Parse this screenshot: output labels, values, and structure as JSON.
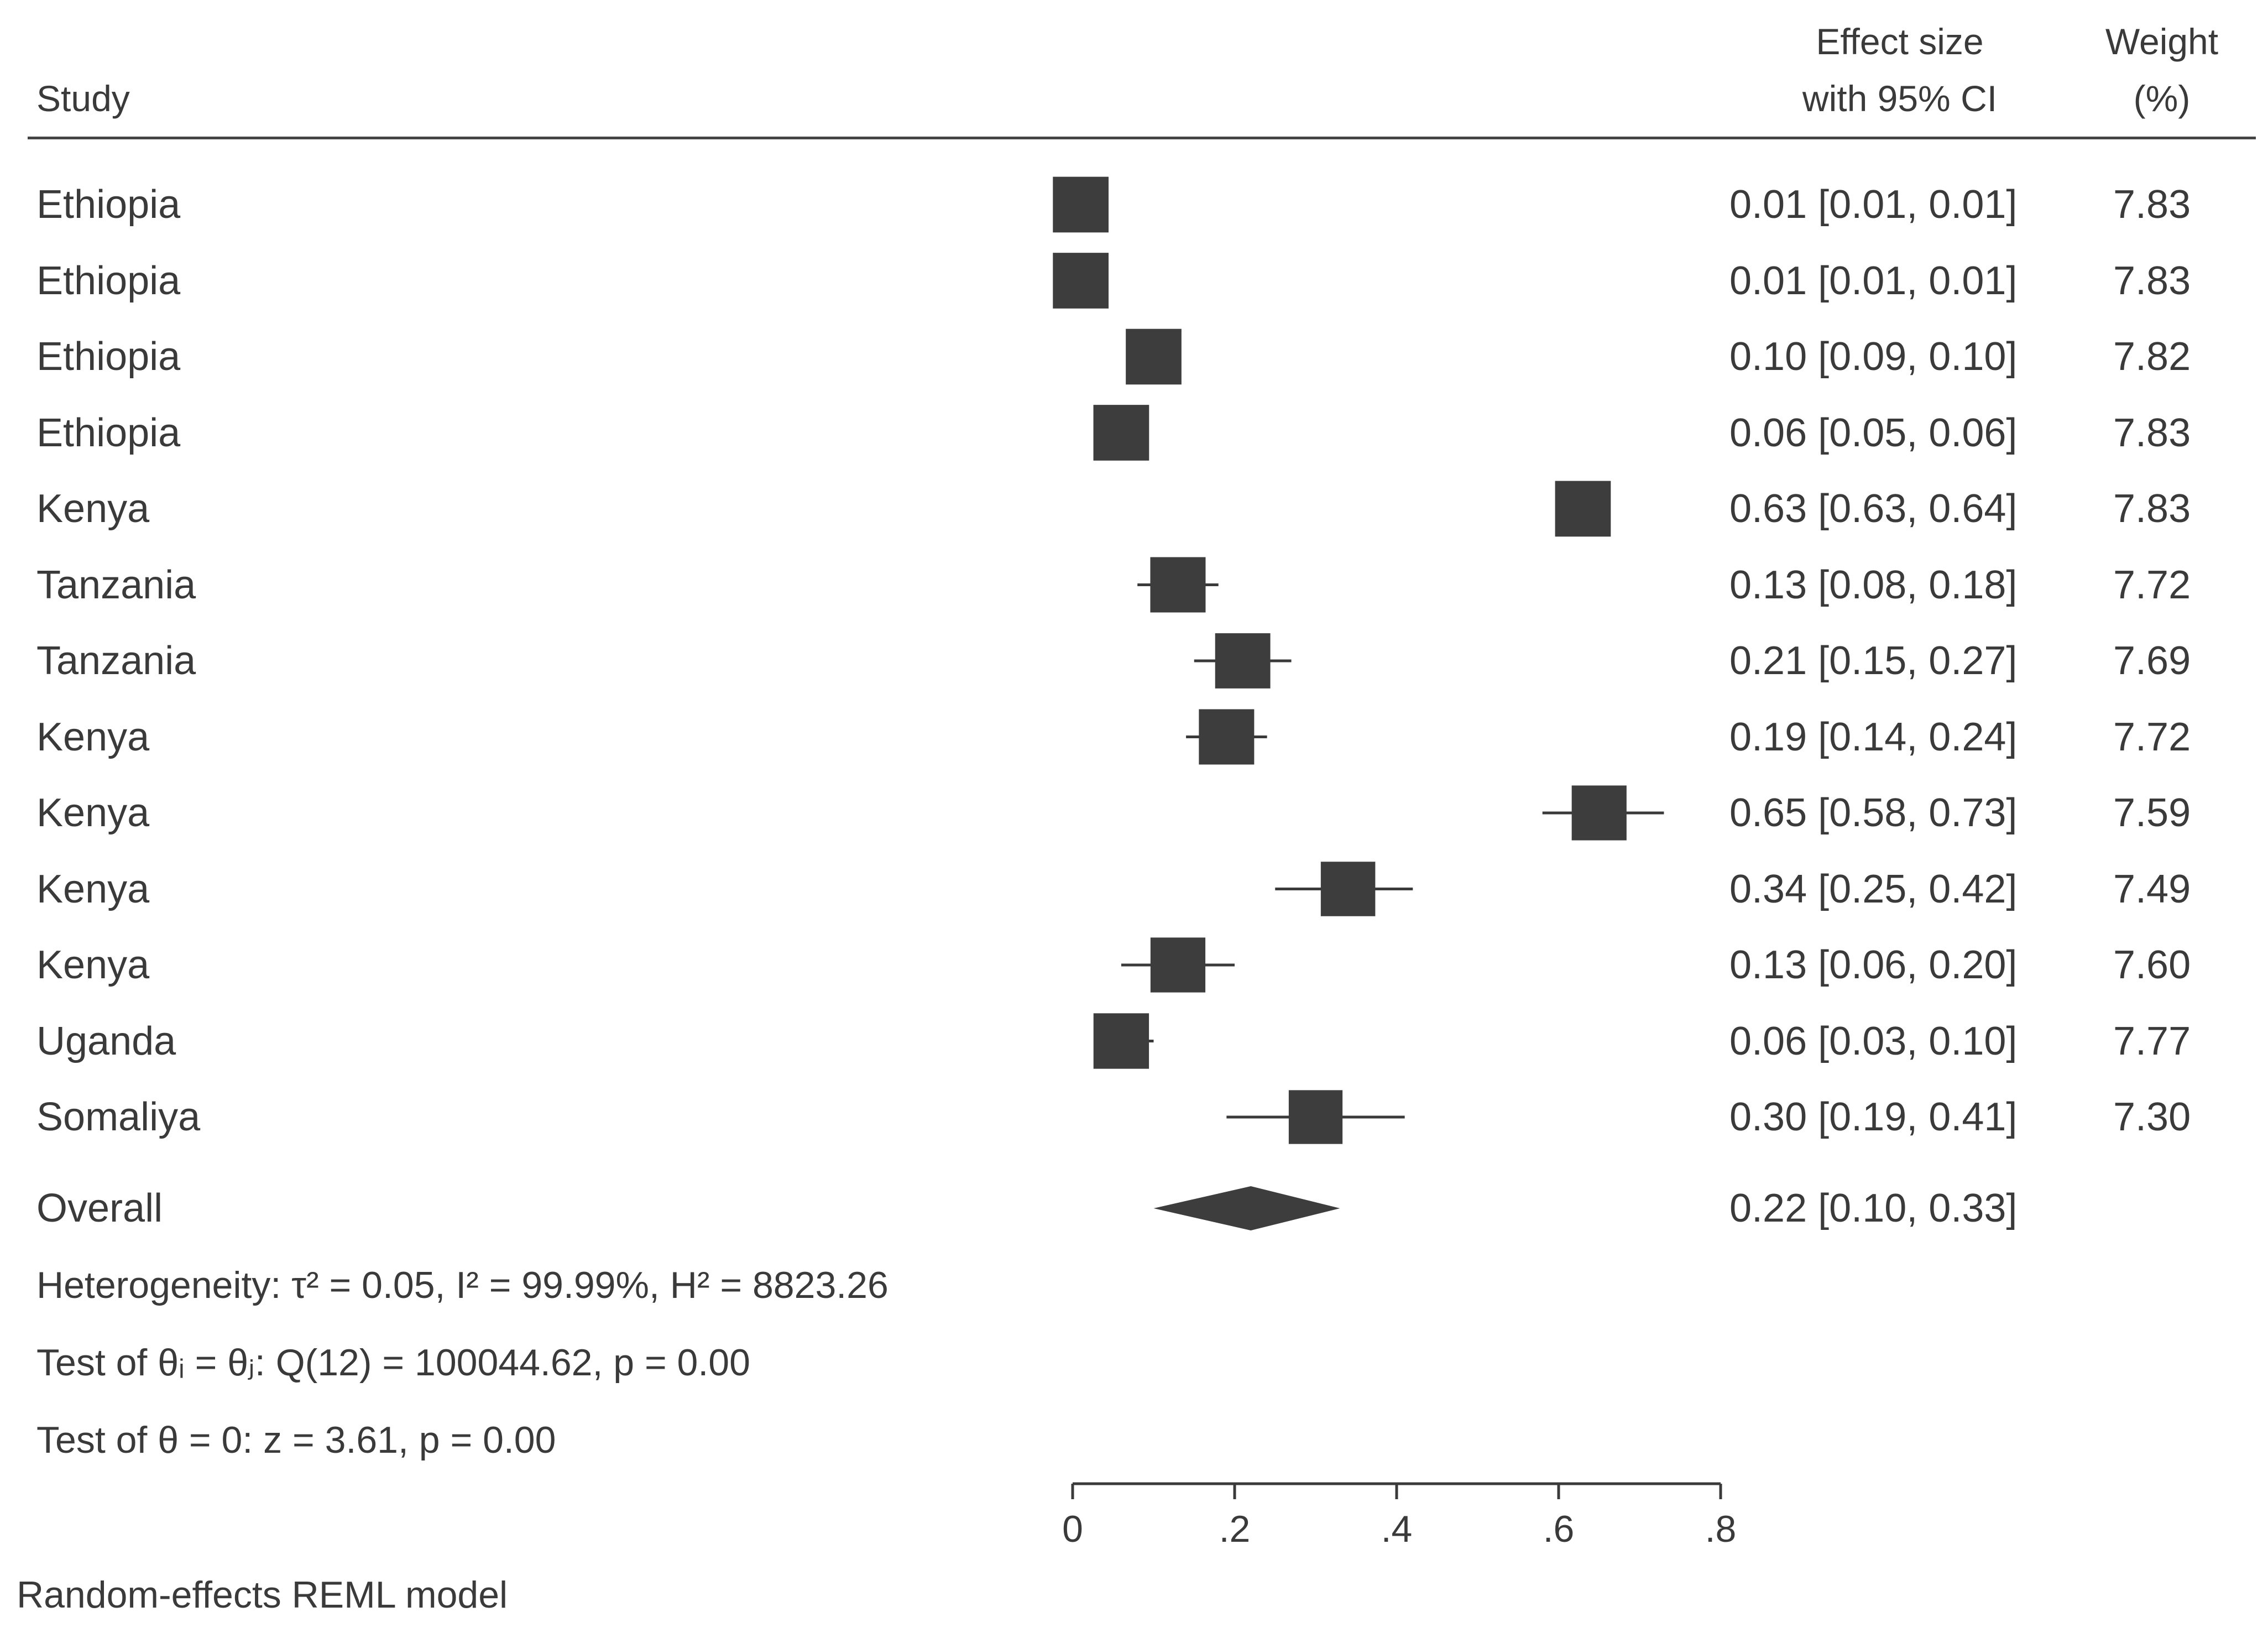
{
  "header": {
    "study": "Study",
    "effect_line1": "Effect size",
    "effect_line2": "with 95% CI",
    "weight_line1": "Weight",
    "weight_line2": "(%)"
  },
  "chart_data": {
    "type": "forest",
    "xlim": [
      0,
      0.8
    ],
    "xticks": [
      0,
      0.2,
      0.4,
      0.6,
      0.8
    ],
    "xtick_labels": [
      "0",
      ".2",
      ".4",
      ".6",
      ".8"
    ],
    "studies": [
      {
        "name": "Ethiopia",
        "es": 0.01,
        "lo": 0.01,
        "hi": 0.01,
        "weight": 7.83,
        "es_text": "0.01 [0.01, 0.01]",
        "weight_text": "7.83"
      },
      {
        "name": "Ethiopia",
        "es": 0.01,
        "lo": 0.01,
        "hi": 0.01,
        "weight": 7.83,
        "es_text": "0.01 [0.01, 0.01]",
        "weight_text": "7.83"
      },
      {
        "name": "Ethiopia",
        "es": 0.1,
        "lo": 0.09,
        "hi": 0.1,
        "weight": 7.82,
        "es_text": "0.10 [0.09, 0.10]",
        "weight_text": "7.82"
      },
      {
        "name": "Ethiopia",
        "es": 0.06,
        "lo": 0.05,
        "hi": 0.06,
        "weight": 7.83,
        "es_text": "0.06 [0.05, 0.06]",
        "weight_text": "7.83"
      },
      {
        "name": "Kenya",
        "es": 0.63,
        "lo": 0.63,
        "hi": 0.64,
        "weight": 7.83,
        "es_text": "0.63 [0.63, 0.64]",
        "weight_text": "7.83"
      },
      {
        "name": "Tanzania",
        "es": 0.13,
        "lo": 0.08,
        "hi": 0.18,
        "weight": 7.72,
        "es_text": "0.13 [0.08, 0.18]",
        "weight_text": "7.72"
      },
      {
        "name": "Tanzania",
        "es": 0.21,
        "lo": 0.15,
        "hi": 0.27,
        "weight": 7.69,
        "es_text": "0.21 [0.15, 0.27]",
        "weight_text": "7.69"
      },
      {
        "name": "Kenya",
        "es": 0.19,
        "lo": 0.14,
        "hi": 0.24,
        "weight": 7.72,
        "es_text": "0.19 [0.14, 0.24]",
        "weight_text": "7.72"
      },
      {
        "name": "Kenya",
        "es": 0.65,
        "lo": 0.58,
        "hi": 0.73,
        "weight": 7.59,
        "es_text": "0.65 [0.58, 0.73]",
        "weight_text": "7.59"
      },
      {
        "name": "Kenya",
        "es": 0.34,
        "lo": 0.25,
        "hi": 0.42,
        "weight": 7.49,
        "es_text": "0.34 [0.25, 0.42]",
        "weight_text": "7.49"
      },
      {
        "name": "Kenya",
        "es": 0.13,
        "lo": 0.06,
        "hi": 0.2,
        "weight": 7.6,
        "es_text": "0.13 [0.06, 0.20]",
        "weight_text": "7.60"
      },
      {
        "name": "Uganda",
        "es": 0.06,
        "lo": 0.03,
        "hi": 0.1,
        "weight": 7.77,
        "es_text": "0.06 [0.03, 0.10]",
        "weight_text": "7.77"
      },
      {
        "name": "Somaliya",
        "es": 0.3,
        "lo": 0.19,
        "hi": 0.41,
        "weight": 7.3,
        "es_text": "0.30 [0.19, 0.41]",
        "weight_text": "7.30"
      }
    ],
    "overall": {
      "name": "Overall",
      "es": 0.22,
      "lo": 0.1,
      "hi": 0.33,
      "es_text": "0.22 [0.10, 0.33]"
    },
    "heterogeneity_label": "Heterogeneity: τ² = 0.05, I² = 99.99%, H² = 8823.26",
    "homogeneity_label": "Test of θᵢ = θⱼ: Q(12) = 100044.62, p = 0.00",
    "test_label": "Test of θ = 0: z = 3.61, p = 0.00",
    "model_label": "Random-effects REML model"
  }
}
